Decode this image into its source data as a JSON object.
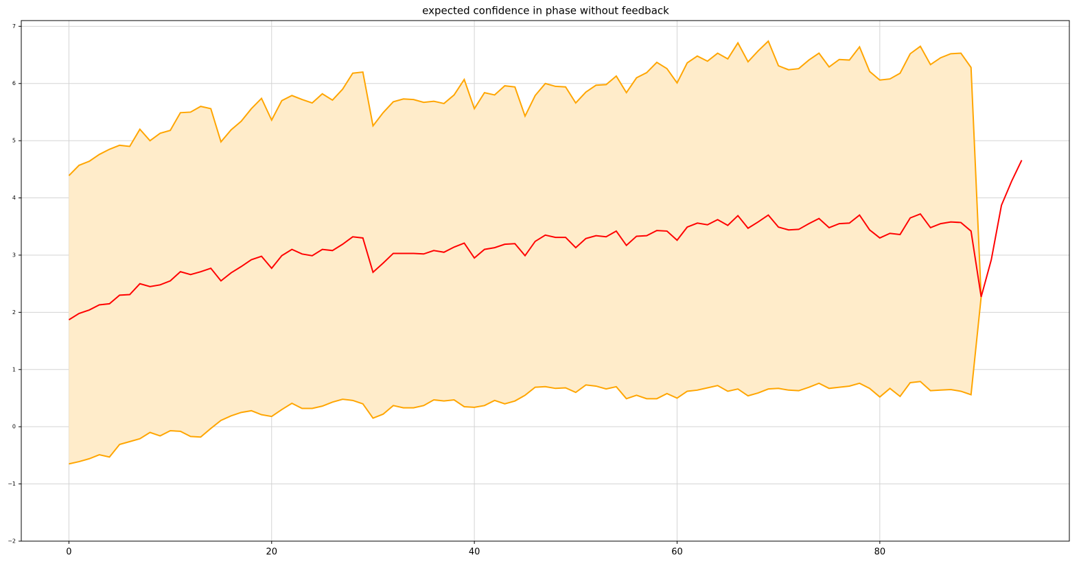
{
  "chart_data": {
    "type": "line",
    "title": "expected confidence in phase without feedback",
    "xlim": [
      -4.7,
      98.7
    ],
    "xticks": [
      0,
      20,
      40,
      60,
      80
    ],
    "ylim": [
      -2,
      7.1
    ],
    "yticks": [
      {
        "value": -2,
        "label": "−2"
      },
      {
        "value": -1,
        "label": "−1"
      },
      0,
      1,
      2,
      3,
      4,
      5,
      6,
      7
    ],
    "grid": true,
    "series": [
      {
        "color": "#ff0000",
        "x": [
          0,
          1,
          2,
          3,
          4,
          5,
          6,
          7,
          8,
          9,
          10,
          11,
          12,
          13,
          14,
          15,
          16,
          17,
          18,
          19,
          20,
          21,
          22,
          23,
          24,
          25,
          26,
          27,
          28,
          29,
          30,
          31,
          32,
          33,
          34,
          35,
          36,
          37,
          38,
          39,
          40,
          41,
          42,
          43,
          44,
          45,
          46,
          47,
          48,
          49,
          50,
          51,
          52,
          53,
          54,
          55,
          56,
          57,
          58,
          59,
          60,
          61,
          62,
          63,
          64,
          65,
          66,
          67,
          68,
          69,
          70,
          71,
          72,
          73,
          74,
          75,
          76,
          77,
          78,
          79,
          80,
          81,
          82,
          83,
          84,
          85,
          86,
          87,
          88,
          89,
          90,
          91,
          92,
          93,
          94
        ],
        "values": [
          1.87,
          1.98,
          2.04,
          2.13,
          2.15,
          2.3,
          2.31,
          2.5,
          2.45,
          2.48,
          2.55,
          2.71,
          2.66,
          2.71,
          2.77,
          2.55,
          2.69,
          2.8,
          2.92,
          2.98,
          2.77,
          2.99,
          3.1,
          3.02,
          2.99,
          3.1,
          3.08,
          3.19,
          3.32,
          3.3,
          2.7,
          2.86,
          3.03,
          3.03,
          3.03,
          3.02,
          3.08,
          3.05,
          3.14,
          3.21,
          2.95,
          3.1,
          3.13,
          3.19,
          3.2,
          2.99,
          3.24,
          3.35,
          3.31,
          3.31,
          3.13,
          3.29,
          3.34,
          3.32,
          3.42,
          3.17,
          3.33,
          3.34,
          3.43,
          3.42,
          3.26,
          3.49,
          3.56,
          3.53,
          3.62,
          3.52,
          3.69,
          3.47,
          3.58,
          3.7,
          3.49,
          3.44,
          3.45,
          3.55,
          3.64,
          3.48,
          3.55,
          3.56,
          3.7,
          3.44,
          3.3,
          3.38,
          3.36,
          3.65,
          3.72,
          3.48,
          3.55,
          3.58,
          3.57,
          3.42,
          2.27,
          2.92,
          3.87,
          4.29,
          4.66
        ]
      }
    ],
    "band": {
      "color": "#ffa500",
      "fill": "#ffecca",
      "x": [
        0,
        1,
        2,
        3,
        4,
        5,
        6,
        7,
        8,
        9,
        10,
        11,
        12,
        13,
        14,
        15,
        16,
        17,
        18,
        19,
        20,
        21,
        22,
        23,
        24,
        25,
        26,
        27,
        28,
        29,
        30,
        31,
        32,
        33,
        34,
        35,
        36,
        37,
        38,
        39,
        40,
        41,
        42,
        43,
        44,
        45,
        46,
        47,
        48,
        49,
        50,
        51,
        52,
        53,
        54,
        55,
        56,
        57,
        58,
        59,
        60,
        61,
        62,
        63,
        64,
        65,
        66,
        67,
        68,
        69,
        70,
        71,
        72,
        73,
        74,
        75,
        76,
        77,
        78,
        79,
        80,
        81,
        82,
        83,
        84,
        85,
        86,
        87,
        88,
        89,
        90
      ],
      "upper": [
        4.39,
        4.57,
        4.64,
        4.76,
        4.85,
        4.92,
        4.9,
        5.2,
        5.0,
        5.13,
        5.18,
        5.49,
        5.5,
        5.6,
        5.56,
        4.98,
        5.19,
        5.34,
        5.56,
        5.74,
        5.36,
        5.7,
        5.79,
        5.72,
        5.66,
        5.82,
        5.71,
        5.9,
        6.18,
        6.2,
        5.26,
        5.49,
        5.68,
        5.73,
        5.72,
        5.67,
        5.69,
        5.65,
        5.8,
        6.07,
        5.56,
        5.84,
        5.8,
        5.96,
        5.94,
        5.43,
        5.79,
        6.0,
        5.95,
        5.94,
        5.66,
        5.85,
        5.97,
        5.98,
        6.13,
        5.84,
        6.1,
        6.19,
        6.37,
        6.26,
        6.01,
        6.36,
        6.48,
        6.39,
        6.53,
        6.43,
        6.71,
        6.38,
        6.57,
        6.74,
        6.31,
        6.24,
        6.26,
        6.41,
        6.53,
        6.29,
        6.42,
        6.41,
        6.64,
        6.21,
        6.06,
        6.08,
        6.18,
        6.52,
        6.65,
        6.33,
        6.45,
        6.52,
        6.53,
        6.28,
        2.27
      ],
      "lower": [
        -0.65,
        -0.61,
        -0.56,
        -0.49,
        -0.53,
        -0.31,
        -0.26,
        -0.21,
        -0.1,
        -0.16,
        -0.07,
        -0.08,
        -0.17,
        -0.18,
        -0.03,
        0.11,
        0.19,
        0.25,
        0.28,
        0.21,
        0.18,
        0.3,
        0.41,
        0.32,
        0.32,
        0.36,
        0.43,
        0.48,
        0.46,
        0.4,
        0.15,
        0.22,
        0.37,
        0.33,
        0.33,
        0.37,
        0.47,
        0.45,
        0.47,
        0.35,
        0.34,
        0.37,
        0.46,
        0.4,
        0.45,
        0.55,
        0.69,
        0.7,
        0.67,
        0.68,
        0.6,
        0.73,
        0.71,
        0.66,
        0.7,
        0.49,
        0.55,
        0.49,
        0.49,
        0.58,
        0.5,
        0.62,
        0.64,
        0.68,
        0.72,
        0.62,
        0.66,
        0.54,
        0.59,
        0.66,
        0.67,
        0.64,
        0.63,
        0.69,
        0.76,
        0.67,
        0.69,
        0.71,
        0.76,
        0.67,
        0.52,
        0.67,
        0.53,
        0.77,
        0.79,
        0.63,
        0.64,
        0.65,
        0.62,
        0.56,
        2.27
      ]
    }
  }
}
